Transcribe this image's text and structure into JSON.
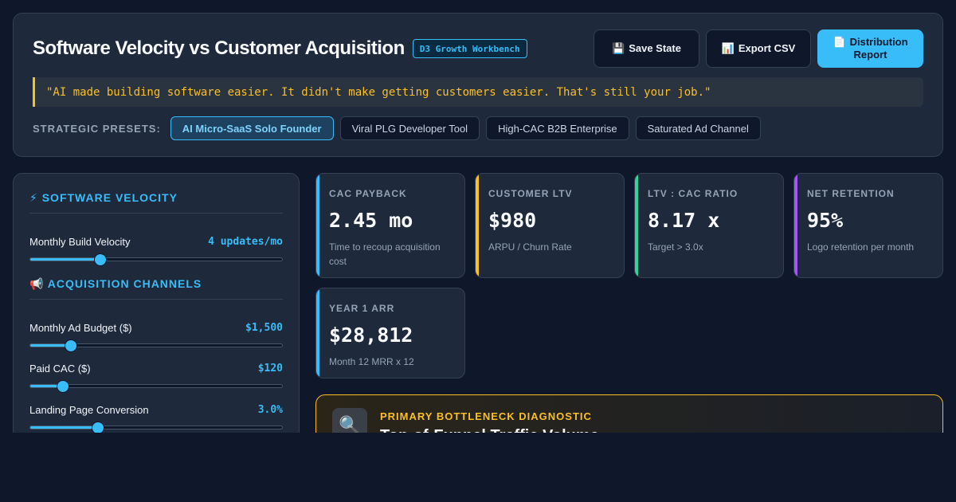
{
  "header": {
    "title": "Software Velocity vs Customer Acquisition",
    "badge": "D3 Growth Workbench",
    "actions": {
      "save": {
        "icon": "💾",
        "label": "Save State"
      },
      "export": {
        "icon": "📊",
        "label": "Export CSV"
      },
      "report": {
        "icon": "📄",
        "label": "Distribution Report"
      }
    },
    "quote": "\"AI made building software easier. It didn't make getting customers easier. That's still your job.\"",
    "presets_label": "STRATEGIC PRESETS:",
    "presets": [
      {
        "label": "AI Micro-SaaS Solo Founder",
        "active": true
      },
      {
        "label": "Viral PLG Developer Tool",
        "active": false
      },
      {
        "label": "High-CAC B2B Enterprise",
        "active": false
      },
      {
        "label": "Saturated Ad Channel",
        "active": false
      }
    ]
  },
  "left_panel": {
    "velocity_title": "⚡ SOFTWARE VELOCITY",
    "acquisition_title": "📢 ACQUISITION CHANNELS",
    "sliders": {
      "build_velocity": {
        "label": "Monthly Build Velocity",
        "value": "4 updates/mo",
        "fraction": 0.28
      },
      "ad_budget": {
        "label": "Monthly Ad Budget ($)",
        "value": "$1,500",
        "fraction": 0.16
      },
      "paid_cac": {
        "label": "Paid CAC ($)",
        "value": "$120",
        "fraction": 0.13
      },
      "conversion": {
        "label": "Landing Page Conversion",
        "value": "3.0%",
        "fraction": 0.27
      }
    }
  },
  "metrics": {
    "cac_payback": {
      "label": "CAC PAYBACK",
      "value": "2.45 mo",
      "sub": "Time to recoup acquisition cost",
      "color": "#38bdf8"
    },
    "ltv": {
      "label": "CUSTOMER LTV",
      "value": "$980",
      "sub": "ARPU / Churn Rate",
      "color": "#fbbf24"
    },
    "ratio": {
      "label": "LTV : CAC RATIO",
      "value": "8.17 x",
      "sub": "Target > 3.0x",
      "color": "#34d399"
    },
    "retention": {
      "label": "NET RETENTION",
      "value": "95%",
      "sub": "Logo retention per month",
      "color": "#a855f7"
    },
    "arr": {
      "label": "YEAR 1 ARR",
      "value": "$28,812",
      "sub": "Month 12 MRR x 12",
      "color": "#38bdf8"
    }
  },
  "diagnostic": {
    "icon": "🔍",
    "label": "PRIMARY BOTTLENECK DIAGNOSTIC",
    "title": "Top-of-Funnel Traffic Volume"
  },
  "colors": {
    "accent": "#38bdf8",
    "warning": "#fbbf24",
    "background": "#0f172a",
    "panel": "#1e293b"
  }
}
